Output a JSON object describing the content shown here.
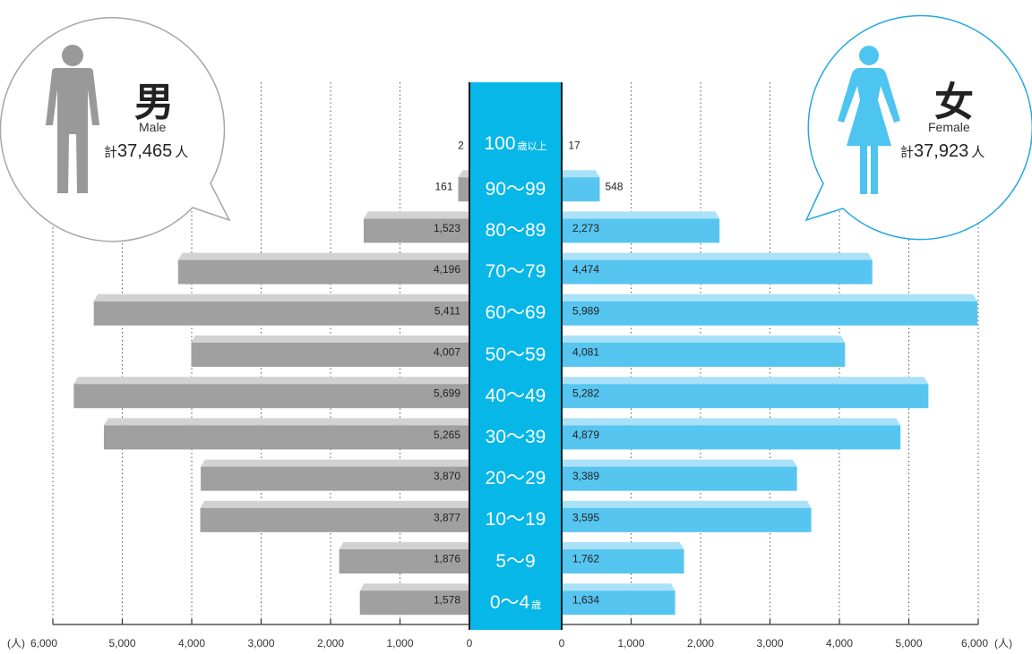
{
  "chart_data": {
    "type": "bar",
    "layout": "population-pyramid",
    "unit": "(人)",
    "categories": [
      {
        "main": "100",
        "unit": "歳以上"
      },
      {
        "main": "90〜99",
        "unit": ""
      },
      {
        "main": "80〜89",
        "unit": ""
      },
      {
        "main": "70〜79",
        "unit": ""
      },
      {
        "main": "60〜69",
        "unit": ""
      },
      {
        "main": "50〜59",
        "unit": ""
      },
      {
        "main": "40〜49",
        "unit": ""
      },
      {
        "main": "30〜39",
        "unit": ""
      },
      {
        "main": "20〜29",
        "unit": ""
      },
      {
        "main": "10〜19",
        "unit": ""
      },
      {
        "main": "5〜9",
        "unit": ""
      },
      {
        "main": "0〜4",
        "unit": "歳"
      }
    ],
    "series": [
      {
        "name": "Male",
        "values": [
          2,
          161,
          1523,
          4196,
          5411,
          4007,
          5699,
          5265,
          3870,
          3877,
          1876,
          1578
        ],
        "labels": [
          "2",
          "161",
          "1,523",
          "4,196",
          "5,411",
          "4,007",
          "5,699",
          "5,265",
          "3,870",
          "3,877",
          "1,876",
          "1,578"
        ]
      },
      {
        "name": "Female",
        "values": [
          17,
          548,
          2273,
          4474,
          5989,
          4081,
          5282,
          4879,
          3389,
          3595,
          1762,
          1634
        ],
        "labels": [
          "17",
          "548",
          "2,273",
          "4,474",
          "5,989",
          "4,081",
          "5,282",
          "4,879",
          "3,389",
          "3,595",
          "1,762",
          "1,634"
        ]
      }
    ],
    "xlim": [
      0,
      6000
    ],
    "ticks": [
      0,
      1000,
      2000,
      3000,
      4000,
      5000,
      6000
    ],
    "tick_labels": [
      "0",
      "1,000",
      "2,000",
      "3,000",
      "4,000",
      "5,000",
      "6,000"
    ],
    "grid": true
  },
  "male": {
    "title": "男",
    "subtitle": "Male",
    "total_prefix": "計",
    "total": "37,465",
    "total_suffix": "人"
  },
  "female": {
    "title": "女",
    "subtitle": "Female",
    "total_prefix": "計",
    "total": "37,923",
    "total_suffix": "人"
  },
  "colors": {
    "male_bar": "#a0a0a0",
    "male_bar_top": "#d2d2d2",
    "female_bar": "#56c5f0",
    "female_bar_top": "#a9e2f8",
    "age_band": "#07b7e8",
    "male_icon": "#999999",
    "female_icon": "#4ec4f0"
  }
}
